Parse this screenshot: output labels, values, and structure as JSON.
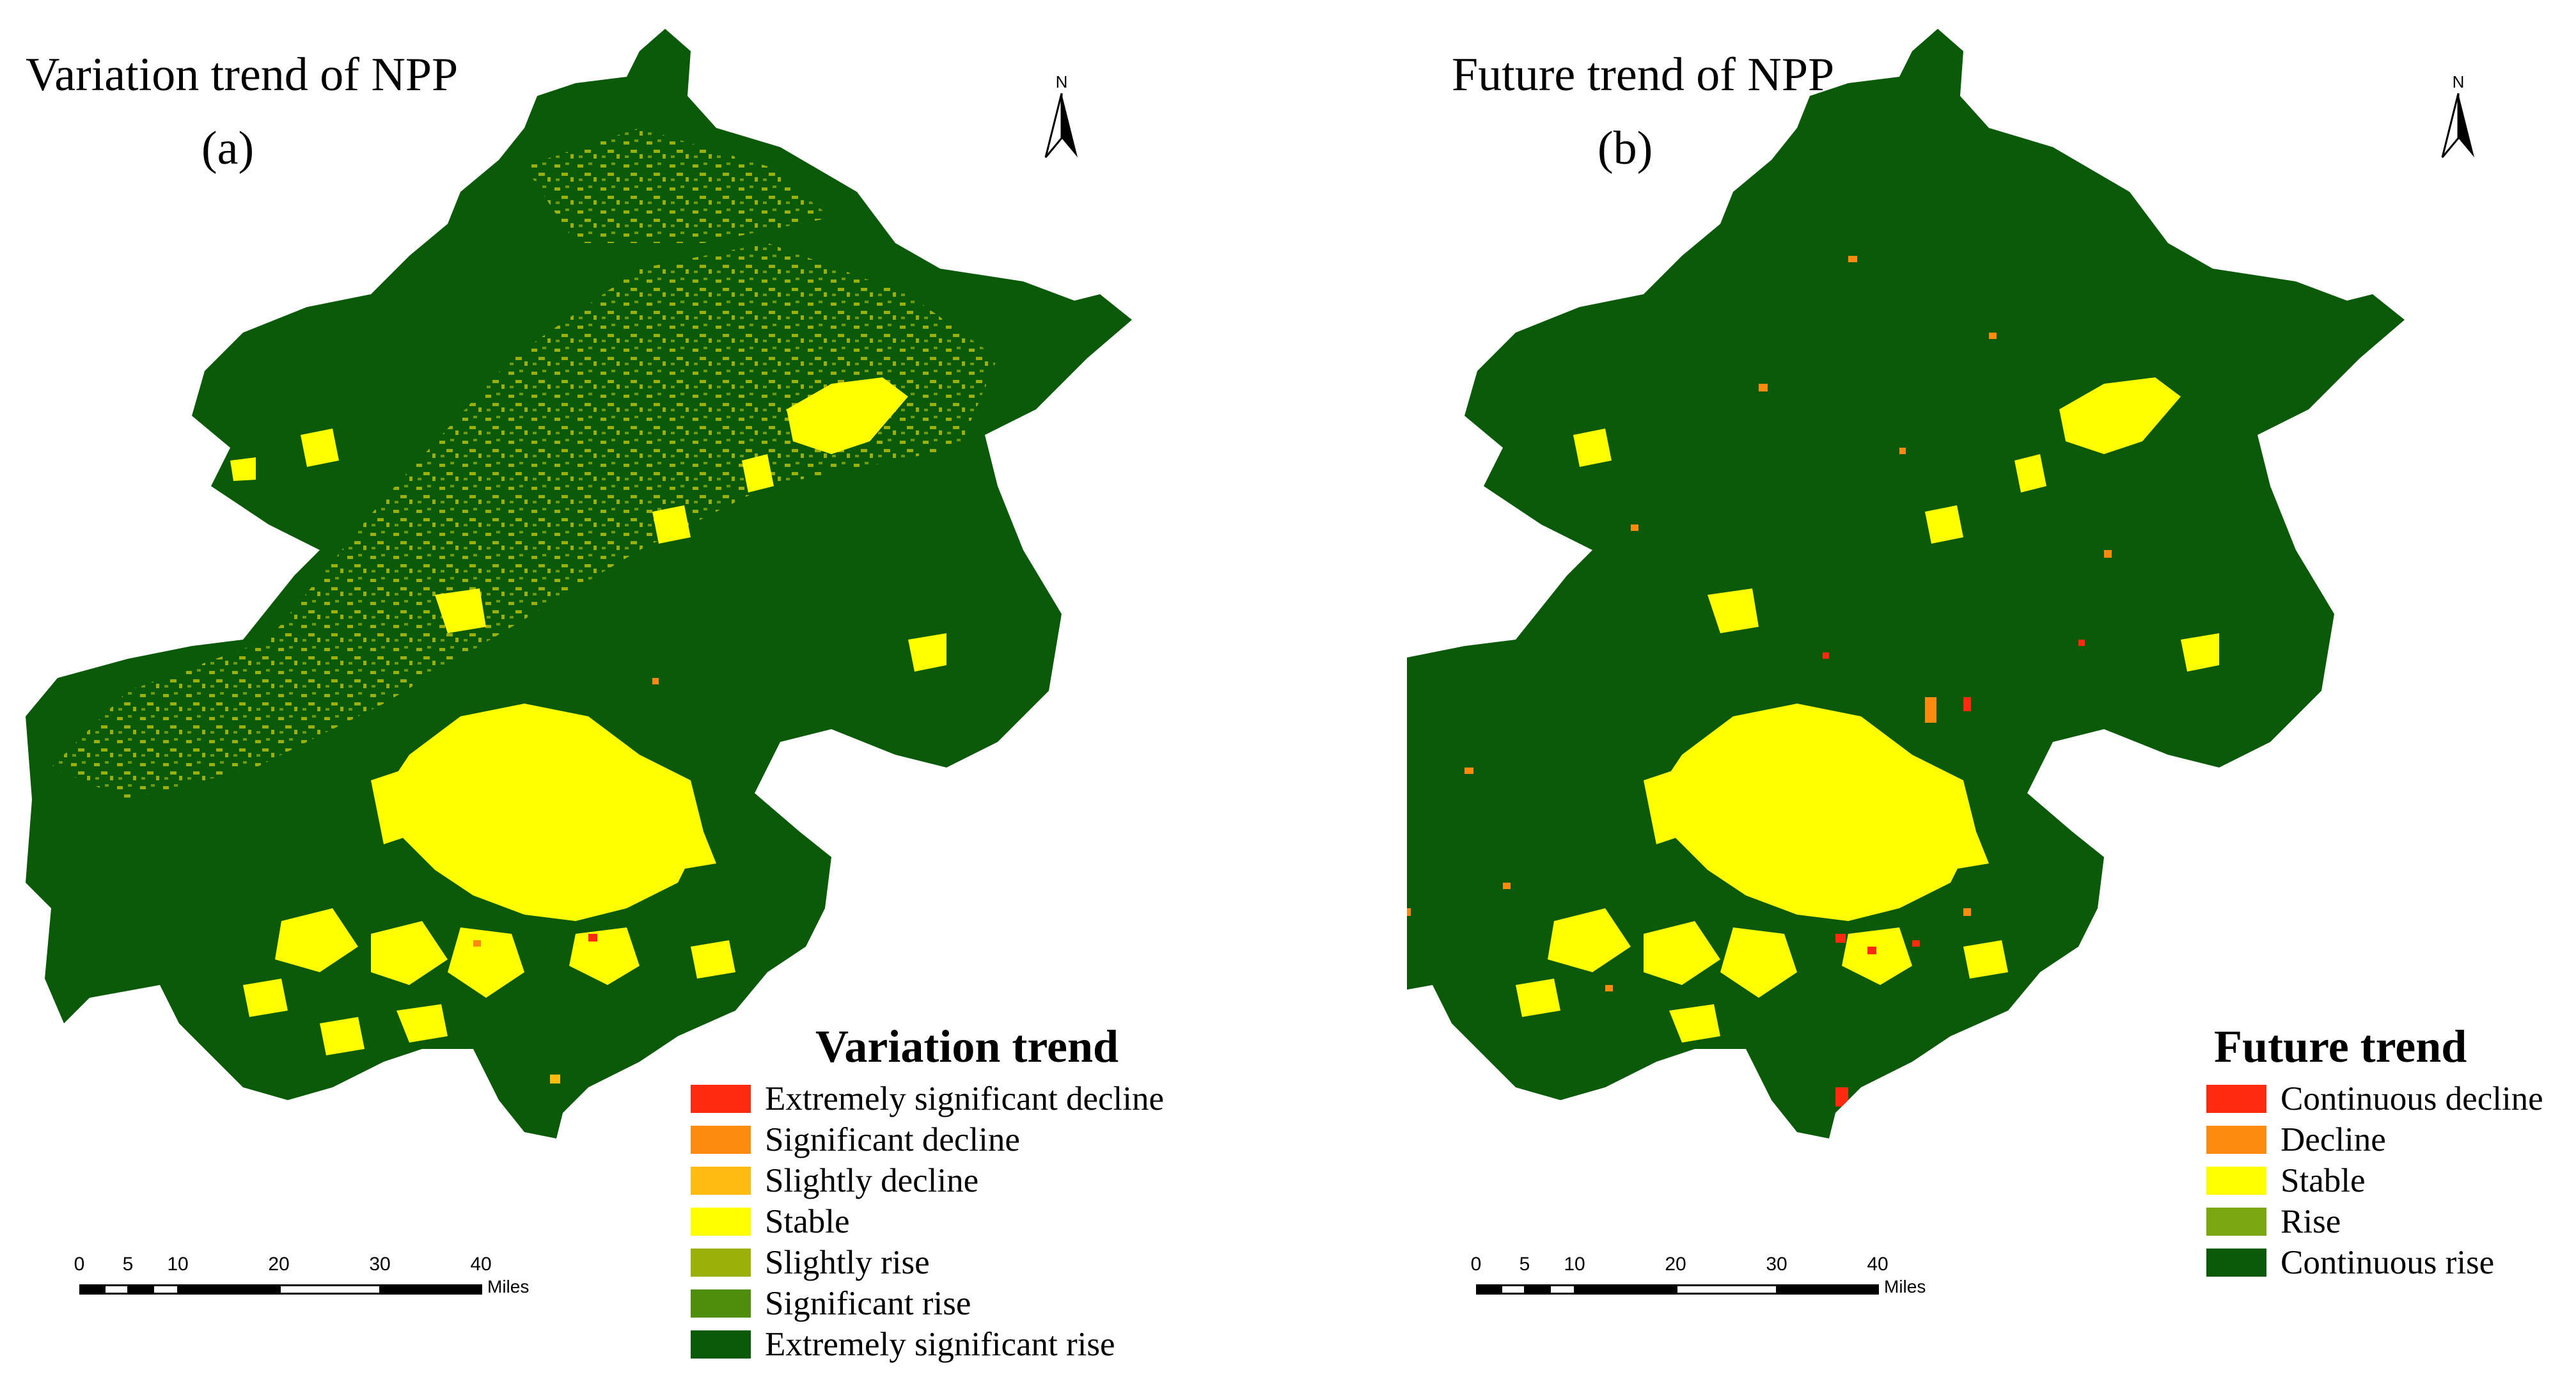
{
  "panels": [
    {
      "title": "Variation trend of NPP",
      "label": "(a)",
      "north": "N",
      "legend_title": "Variation trend",
      "legend": [
        {
          "label": "Extremely significant decline",
          "color": "#ff2a10"
        },
        {
          "label": "Significant decline",
          "color": "#ff8a10"
        },
        {
          "label": "Slightly decline",
          "color": "#ffbb10"
        },
        {
          "label": "Stable",
          "color": "#ffff00"
        },
        {
          "label": "Slightly rise",
          "color": "#9bb10a"
        },
        {
          "label": "Significant rise",
          "color": "#4f8e0c"
        },
        {
          "label": "Extremely significant rise",
          "color": "#0a5a0a"
        }
      ],
      "scale": {
        "ticks": [
          "0",
          "5",
          "10",
          "20",
          "30",
          "40"
        ],
        "unit": "Miles"
      }
    },
    {
      "title": "Future trend of NPP",
      "label": "(b)",
      "north": "N",
      "legend_title": "Future trend",
      "legend": [
        {
          "label": "Continuous decline",
          "color": "#ff2a10"
        },
        {
          "label": "Decline",
          "color": "#ff8a10"
        },
        {
          "label": "Stable",
          "color": "#ffff00"
        },
        {
          "label": "Rise",
          "color": "#7ba812"
        },
        {
          "label": "Continuous rise",
          "color": "#0a5a0a"
        }
      ],
      "scale": {
        "ticks": [
          "0",
          "5",
          "10",
          "20",
          "30",
          "40"
        ],
        "unit": "Miles"
      }
    }
  ],
  "colors": {
    "base_green": "#0a5a0a",
    "stable_yellow": "#ffff00",
    "light_rise": "#9bb10a",
    "orange": "#ff8a10",
    "red": "#ff2a10"
  }
}
